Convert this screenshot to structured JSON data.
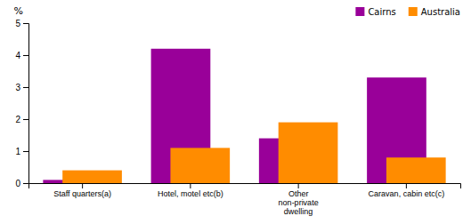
{
  "chart_data": {
    "type": "bar",
    "categories": [
      "Staff quarters(a)",
      "Hotel, motel etc(b)",
      "Other\nnon-private\ndwelling",
      "Caravan, cabin etc(c)"
    ],
    "series": [
      {
        "name": "Cairns",
        "color": "#990099",
        "values": [
          0.1,
          4.2,
          1.4,
          3.3
        ]
      },
      {
        "name": "Australia",
        "color": "#FF8C00",
        "values": [
          0.4,
          1.1,
          1.9,
          0.8
        ]
      }
    ],
    "ylabel": "%",
    "ylim": [
      0,
      5
    ],
    "yticks": [
      0,
      1,
      2,
      3,
      4,
      5
    ],
    "grid": false,
    "legend": "upper right"
  }
}
